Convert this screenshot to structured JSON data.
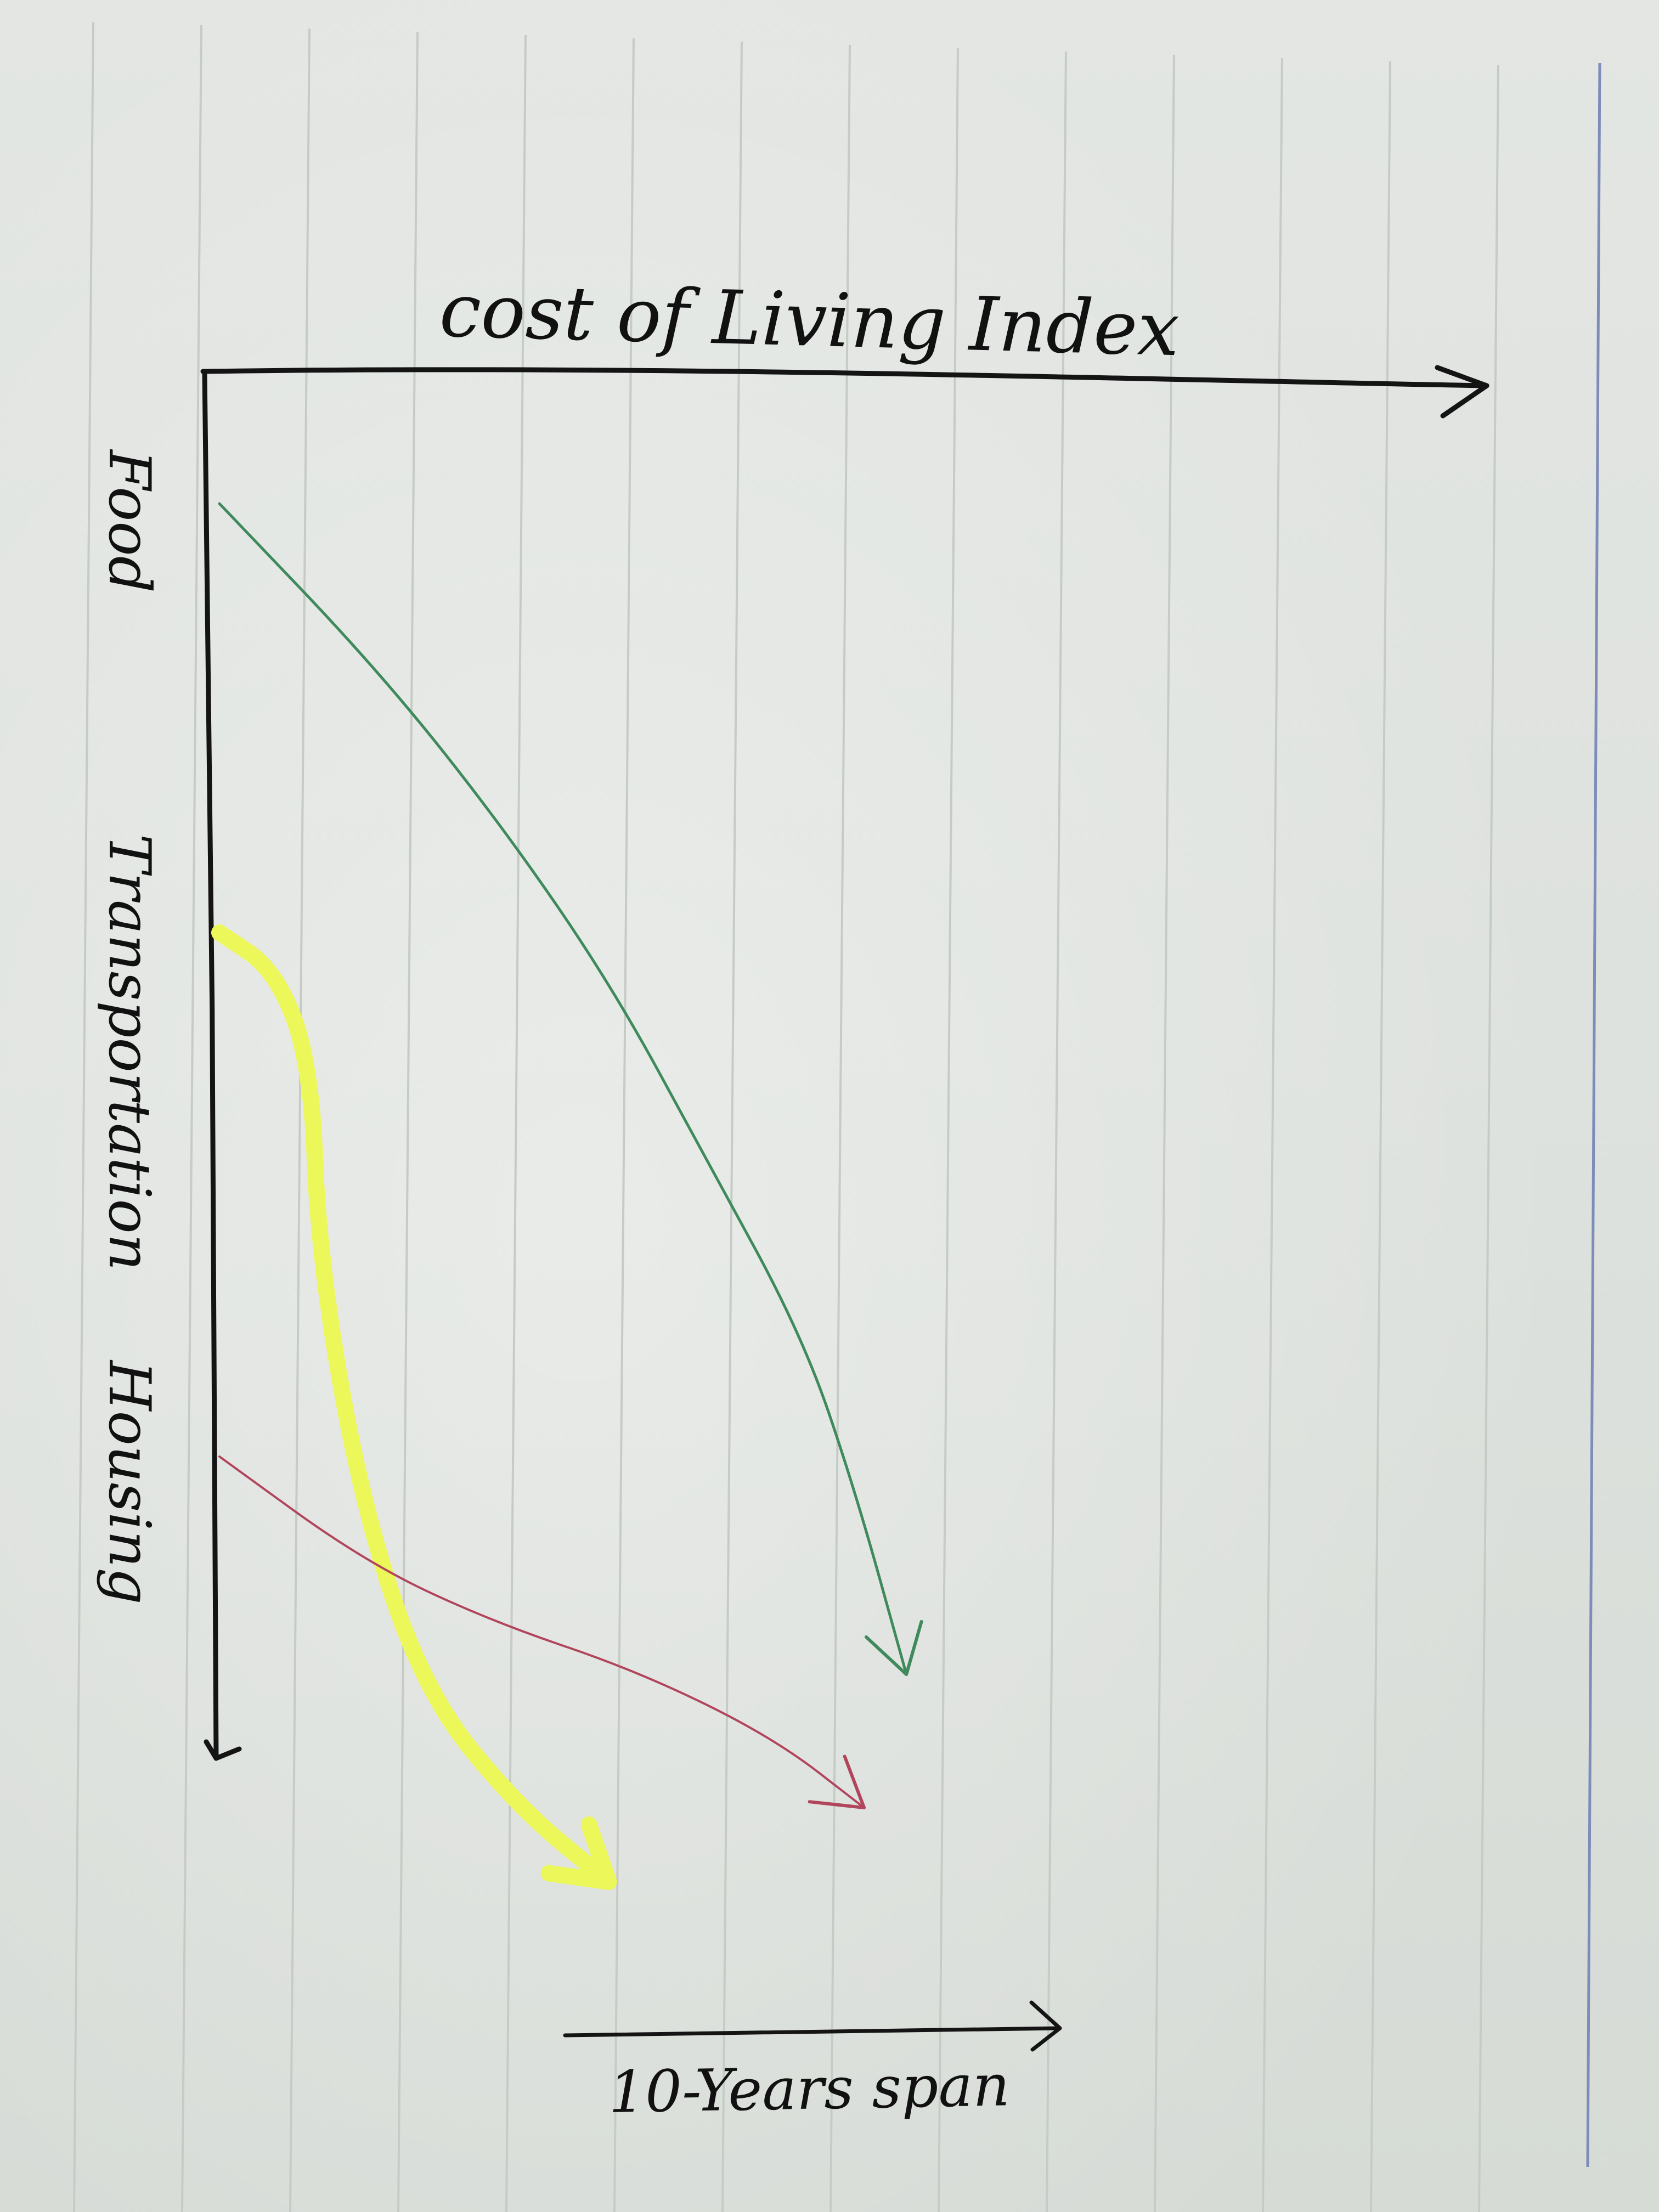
{
  "chart_data": {
    "type": "line",
    "title": "",
    "x_axis_label": "cost of Living Index",
    "time_label": "10-Years span",
    "series": [
      {
        "name": "Food",
        "color": "#3f8a5c",
        "values": [
          {
            "index": 0.0,
            "time": 0.0
          },
          {
            "index": 0.18,
            "time": 0.14
          },
          {
            "index": 0.32,
            "time": 0.27
          },
          {
            "index": 0.45,
            "time": 0.41
          },
          {
            "index": 0.56,
            "time": 0.56
          },
          {
            "index": 0.67,
            "time": 0.71
          },
          {
            "index": 0.73,
            "time": 0.84
          },
          {
            "index": 0.79,
            "time": 1.0
          }
        ]
      },
      {
        "name": "Transportation",
        "color": "#ecf75a",
        "values": [
          {
            "index": 0.0,
            "time": 0.0
          },
          {
            "index": 0.08,
            "time": 0.04
          },
          {
            "index": 0.13,
            "time": 0.14
          },
          {
            "index": 0.14,
            "time": 0.34
          },
          {
            "index": 0.2,
            "time": 0.6
          },
          {
            "index": 0.29,
            "time": 0.8
          },
          {
            "index": 0.42,
            "time": 0.92
          },
          {
            "index": 0.55,
            "time": 1.0
          }
        ]
      },
      {
        "name": "Housing",
        "color": "#b1455c",
        "values": [
          {
            "index": 0.0,
            "time": 0.0
          },
          {
            "index": 0.16,
            "time": 0.3
          },
          {
            "index": 0.3,
            "time": 0.47
          },
          {
            "index": 0.46,
            "time": 0.61
          },
          {
            "index": 0.61,
            "time": 0.8
          },
          {
            "index": 0.71,
            "time": 1.0
          }
        ]
      }
    ],
    "legend": "none",
    "grid": true
  }
}
